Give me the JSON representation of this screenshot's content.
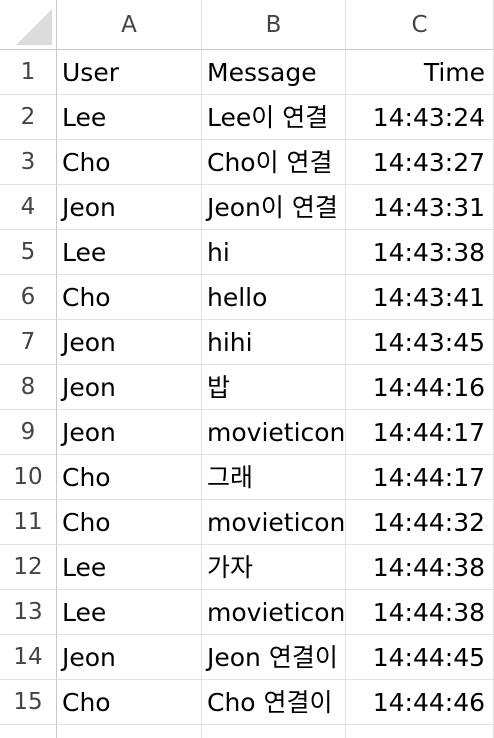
{
  "columns": [
    "A",
    "B",
    "C"
  ],
  "rows": [
    {
      "num": "1",
      "a": "User",
      "b": "Message",
      "c": "Time"
    },
    {
      "num": "2",
      "a": "Lee",
      "b": "Lee이 연결",
      "c": "14:43:24"
    },
    {
      "num": "3",
      "a": "Cho",
      "b": "Cho이 연결",
      "c": "14:43:27"
    },
    {
      "num": "4",
      "a": "Jeon",
      "b": "Jeon이 연결",
      "c": "14:43:31"
    },
    {
      "num": "5",
      "a": "Lee",
      "b": "hi",
      "c": "14:43:38"
    },
    {
      "num": "6",
      "a": "Cho",
      "b": "hello",
      "c": "14:43:41"
    },
    {
      "num": "7",
      "a": "Jeon",
      "b": "hihi",
      "c": "14:43:45"
    },
    {
      "num": "8",
      "a": "Jeon",
      "b": "밥",
      "c": "14:44:16"
    },
    {
      "num": "9",
      "a": "Jeon",
      "b": "movieticon",
      "c": "14:44:17"
    },
    {
      "num": "10",
      "a": "Cho",
      "b": "그래",
      "c": "14:44:17"
    },
    {
      "num": "11",
      "a": "Cho",
      "b": "movieticon",
      "c": "14:44:32"
    },
    {
      "num": "12",
      "a": "Lee",
      "b": "가자",
      "c": "14:44:38"
    },
    {
      "num": "13",
      "a": "Lee",
      "b": "movieticon",
      "c": "14:44:38"
    },
    {
      "num": "14",
      "a": "Jeon",
      "b": "Jeon 연결이",
      "c": "14:44:45"
    },
    {
      "num": "15",
      "a": "Cho",
      "b": "Cho 연결이",
      "c": "14:44:46"
    }
  ]
}
